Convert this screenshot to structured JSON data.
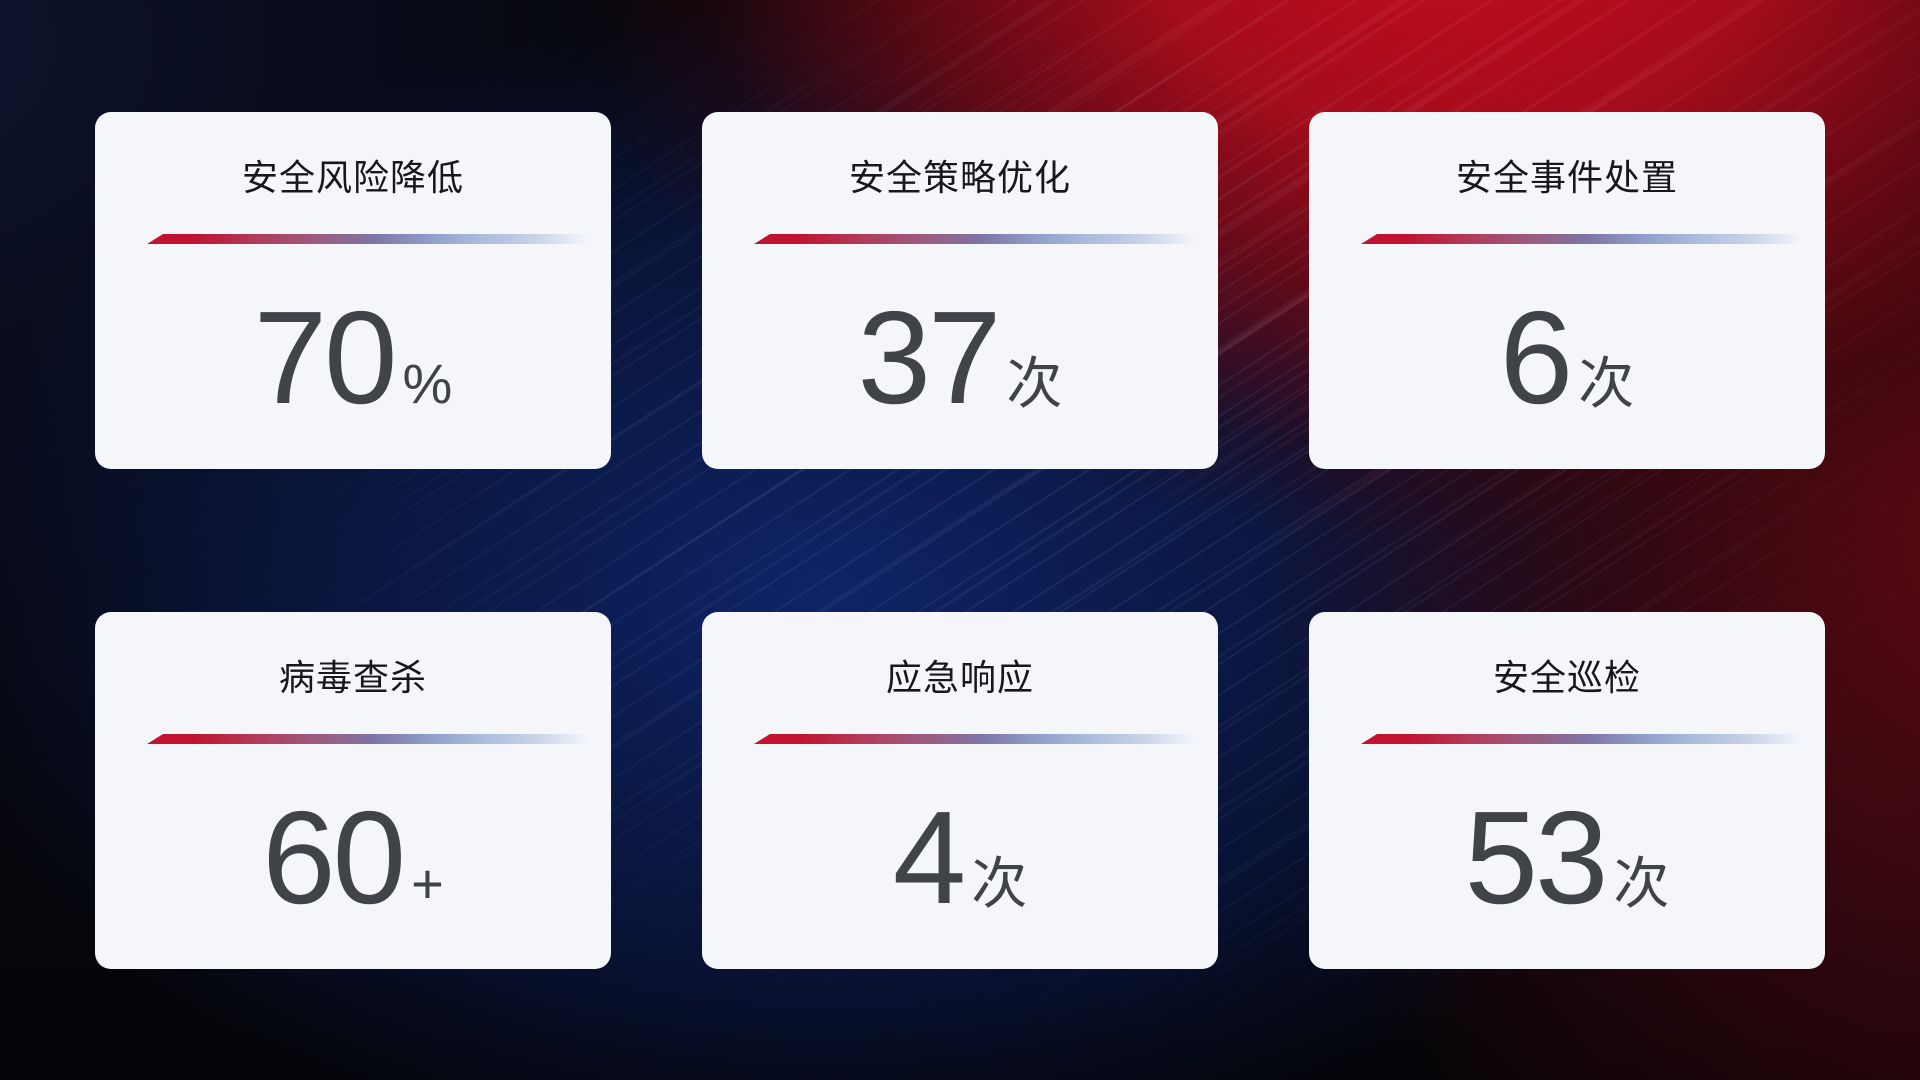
{
  "dashboard": {
    "cards": [
      {
        "name": "security-risk-reduction",
        "title": "安全风险降低",
        "value": "70",
        "unit": "%"
      },
      {
        "name": "security-policy-optimization",
        "title": "安全策略优化",
        "value": "37",
        "unit": "次"
      },
      {
        "name": "security-incident-handling",
        "title": "安全事件处置",
        "value": "6",
        "unit": "次"
      },
      {
        "name": "virus-scan-kill",
        "title": "病毒查杀",
        "value": "60",
        "unit": "+"
      },
      {
        "name": "emergency-response",
        "title": "应急响应",
        "value": "4",
        "unit": "次"
      },
      {
        "name": "security-inspection",
        "title": "安全巡检",
        "value": "53",
        "unit": "次"
      }
    ],
    "colors": {
      "card_background": "#f4f6fa",
      "title_text": "#17181a",
      "value_text": "#404347",
      "divider_red": "#c11330",
      "divider_steel_blue": "#a9bcdc",
      "background_base": "#07080f",
      "background_red_accent": "#c20d1c",
      "background_blue_accent": "#0f2669",
      "background_navy": "#0f1532"
    }
  }
}
